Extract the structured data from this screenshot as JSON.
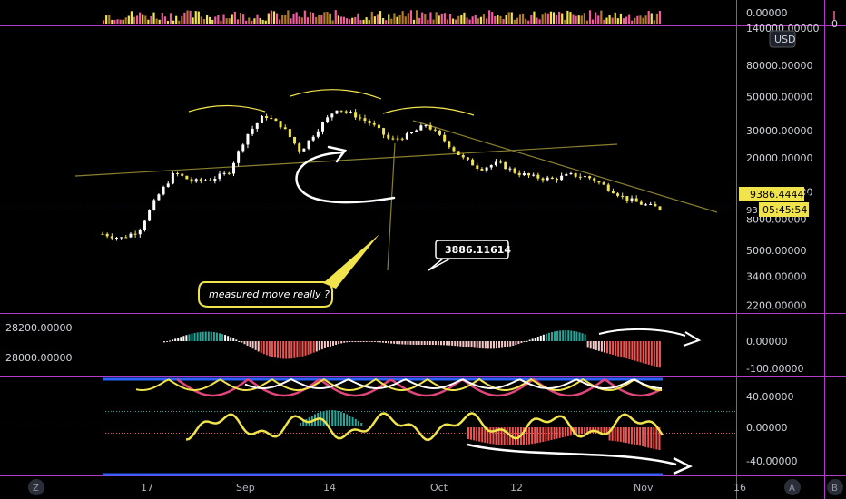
{
  "currency": "USD",
  "price_tag": {
    "price": "9386.44448",
    "countdown": "05:45:54",
    "prefix": "93"
  },
  "annotations": {
    "callout": "measured move really ?",
    "bubble": "3886.11614"
  },
  "buttons": {
    "left": "Z",
    "a": "A",
    "b": "B"
  },
  "colors": {
    "candle_up": "#ffffff",
    "candle_down": "#f0e34c",
    "panel_border": "#b03cc8",
    "gold": "#f0e34c"
  },
  "chart_data": [
    {
      "type": "bar",
      "panel": "volume",
      "axis_ticks": [
        {
          "value": 0,
          "label": "0.00000"
        }
      ],
      "right_label": "0"
    },
    {
      "type": "candlestick",
      "panel": "price",
      "scale": "log",
      "axis_ticks": [
        {
          "value": 140000,
          "label": "140000.00000"
        },
        {
          "value": 80000,
          "label": "80000.00000"
        },
        {
          "value": 50000,
          "label": "50000.00000"
        },
        {
          "value": 30000,
          "label": "30000.00000"
        },
        {
          "value": 20000,
          "label": "20000.00000"
        },
        {
          "value": 12000,
          "label": "12000.00000"
        },
        {
          "value": 8000,
          "label": "8000.00000"
        },
        {
          "value": 5000,
          "label": "5000.00000"
        },
        {
          "value": 3400,
          "label": "3400.00000"
        },
        {
          "value": 2200,
          "label": "2200.00000"
        }
      ],
      "series": [
        {
          "date": "Aug 10",
          "close": 6400
        },
        {
          "date": "Aug 14",
          "close": 6000
        },
        {
          "date": "Aug 17",
          "close": 6700
        },
        {
          "date": "Aug 20",
          "close": 11000
        },
        {
          "date": "Aug 23",
          "close": 16000
        },
        {
          "date": "Aug 26",
          "close": 14000
        },
        {
          "date": "Aug 29",
          "close": 14500
        },
        {
          "date": "Sep 1",
          "close": 16000
        },
        {
          "date": "Sep 3",
          "close": 28000
        },
        {
          "date": "Sep 5",
          "close": 38000
        },
        {
          "date": "Sep 8",
          "close": 32000
        },
        {
          "date": "Sep 11",
          "close": 22000
        },
        {
          "date": "Sep 13",
          "close": 31000
        },
        {
          "date": "Sep 15",
          "close": 42000
        },
        {
          "date": "Sep 17",
          "close": 38000
        },
        {
          "date": "Sep 20",
          "close": 33000
        },
        {
          "date": "Sep 23",
          "close": 26000
        },
        {
          "date": "Sep 26",
          "close": 28000
        },
        {
          "date": "Sep 28",
          "close": 33000
        },
        {
          "date": "Oct 1",
          "close": 26000
        },
        {
          "date": "Oct 4",
          "close": 20000
        },
        {
          "date": "Oct 7",
          "close": 17000
        },
        {
          "date": "Oct 10",
          "close": 18500
        },
        {
          "date": "Oct 13",
          "close": 16000
        },
        {
          "date": "Oct 16",
          "close": 15000
        },
        {
          "date": "Oct 19",
          "close": 14500
        },
        {
          "date": "Oct 22",
          "close": 15500
        },
        {
          "date": "Oct 25",
          "close": 15000
        },
        {
          "date": "Oct 28",
          "close": 13000
        },
        {
          "date": "Oct 31",
          "close": 11000
        },
        {
          "date": "Nov 3",
          "close": 10000
        },
        {
          "date": "Nov 5",
          "close": 9386.44448
        }
      ]
    },
    {
      "type": "bar",
      "panel": "histogram",
      "left_ticks": [
        {
          "value": 28200,
          "label": "28200.00000"
        },
        {
          "value": 28000,
          "label": "28000.00000"
        }
      ],
      "axis_ticks": [
        {
          "value": 0,
          "label": "0.00000"
        },
        {
          "value": -100,
          "label": "-100.00000"
        }
      ]
    },
    {
      "type": "line",
      "panel": "oscillator",
      "axis_ticks": [
        {
          "value": 40,
          "label": "40.00000"
        },
        {
          "value": 0,
          "label": "0.00000"
        },
        {
          "value": -40,
          "label": "-40.00000"
        }
      ]
    }
  ],
  "time_axis": [
    "17",
    "Sep",
    "14",
    "Oct",
    "12",
    "Nov",
    "16"
  ]
}
